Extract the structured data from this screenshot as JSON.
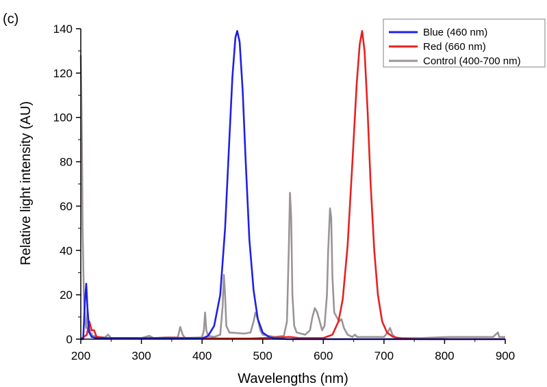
{
  "panel_label": "(c)",
  "chart_data": {
    "type": "line",
    "title": "",
    "xlabel": "Wavelengths (nm)",
    "ylabel": "Relative light intensity (AU)",
    "xlim": [
      200,
      900
    ],
    "ylim": [
      0,
      140
    ],
    "x_ticks": [
      200,
      300,
      400,
      500,
      600,
      700,
      800,
      900
    ],
    "y_ticks": [
      0,
      20,
      40,
      60,
      80,
      100,
      120,
      140
    ],
    "grid": false,
    "legend_position": "top-right",
    "series": [
      {
        "name": "Blue (460 nm)",
        "color": "#1f1fe6",
        "points": [
          [
            200,
            0
          ],
          [
            204,
            0
          ],
          [
            207,
            18
          ],
          [
            209,
            25
          ],
          [
            211,
            14
          ],
          [
            214,
            3
          ],
          [
            218,
            1
          ],
          [
            225,
            0.5
          ],
          [
            400,
            0.3
          ],
          [
            410,
            1.5
          ],
          [
            420,
            6
          ],
          [
            430,
            20
          ],
          [
            438,
            50
          ],
          [
            445,
            90
          ],
          [
            450,
            118
          ],
          [
            455,
            136
          ],
          [
            458,
            139
          ],
          [
            462,
            134
          ],
          [
            467,
            112
          ],
          [
            472,
            80
          ],
          [
            478,
            45
          ],
          [
            485,
            22
          ],
          [
            492,
            9
          ],
          [
            500,
            3
          ],
          [
            510,
            1
          ],
          [
            520,
            0.3
          ],
          [
            540,
            0
          ],
          [
            900,
            0
          ]
        ]
      },
      {
        "name": "Red (660 nm)",
        "color": "#e81f1f",
        "points": [
          [
            200,
            0
          ],
          [
            210,
            2
          ],
          [
            214,
            8
          ],
          [
            218,
            4
          ],
          [
            222,
            4
          ],
          [
            226,
            1
          ],
          [
            240,
            0.5
          ],
          [
            300,
            0.4
          ],
          [
            350,
            0.6
          ],
          [
            400,
            0.5
          ],
          [
            430,
            0.3
          ],
          [
            480,
            0.3
          ],
          [
            500,
            0.5
          ],
          [
            545,
            1
          ],
          [
            560,
            0.5
          ],
          [
            600,
            0.5
          ],
          [
            615,
            2
          ],
          [
            625,
            8
          ],
          [
            632,
            18
          ],
          [
            640,
            42
          ],
          [
            648,
            80
          ],
          [
            655,
            115
          ],
          [
            660,
            133
          ],
          [
            664,
            139
          ],
          [
            668,
            130
          ],
          [
            673,
            103
          ],
          [
            678,
            70
          ],
          [
            684,
            40
          ],
          [
            690,
            20
          ],
          [
            697,
            8
          ],
          [
            705,
            3
          ],
          [
            715,
            1
          ],
          [
            730,
            0.3
          ],
          [
            760,
            0
          ],
          [
            900,
            0
          ]
        ]
      },
      {
        "name": "Control (400-700 nm)",
        "color": "#9a9397",
        "points": [
          [
            200,
            128
          ],
          [
            201,
            110
          ],
          [
            202,
            86
          ],
          [
            203,
            50
          ],
          [
            205,
            20
          ],
          [
            207,
            8
          ],
          [
            209,
            5
          ],
          [
            211,
            13
          ],
          [
            213,
            5
          ],
          [
            216,
            3
          ],
          [
            220,
            1.5
          ],
          [
            230,
            1
          ],
          [
            240,
            0.8
          ],
          [
            245,
            2
          ],
          [
            250,
            0.5
          ],
          [
            300,
            0.5
          ],
          [
            313,
            1.5
          ],
          [
            320,
            0.5
          ],
          [
            340,
            0.8
          ],
          [
            360,
            0.8
          ],
          [
            364,
            5.5
          ],
          [
            368,
            2
          ],
          [
            372,
            0.5
          ],
          [
            400,
            0.8
          ],
          [
            403,
            4
          ],
          [
            405,
            12
          ],
          [
            407,
            4
          ],
          [
            410,
            1.5
          ],
          [
            420,
            1
          ],
          [
            430,
            2
          ],
          [
            434,
            15
          ],
          [
            436,
            29
          ],
          [
            438,
            20
          ],
          [
            440,
            6
          ],
          [
            445,
            3
          ],
          [
            470,
            2.5
          ],
          [
            480,
            3
          ],
          [
            485,
            8
          ],
          [
            488,
            12
          ],
          [
            492,
            9
          ],
          [
            496,
            4
          ],
          [
            500,
            2
          ],
          [
            520,
            1
          ],
          [
            535,
            1.5
          ],
          [
            540,
            8
          ],
          [
            543,
            40
          ],
          [
            545,
            66
          ],
          [
            547,
            55
          ],
          [
            549,
            20
          ],
          [
            552,
            6
          ],
          [
            556,
            3
          ],
          [
            570,
            2
          ],
          [
            578,
            4
          ],
          [
            582,
            10
          ],
          [
            586,
            14
          ],
          [
            590,
            12
          ],
          [
            594,
            8
          ],
          [
            598,
            4
          ],
          [
            602,
            6
          ],
          [
            606,
            20
          ],
          [
            608,
            40
          ],
          [
            611,
            59
          ],
          [
            613,
            55
          ],
          [
            615,
            28
          ],
          [
            618,
            12
          ],
          [
            622,
            10
          ],
          [
            626,
            8
          ],
          [
            630,
            9
          ],
          [
            634,
            5
          ],
          [
            640,
            2
          ],
          [
            648,
            1
          ],
          [
            652,
            2
          ],
          [
            656,
            1
          ],
          [
            680,
            1
          ],
          [
            700,
            1
          ],
          [
            706,
            3
          ],
          [
            710,
            5
          ],
          [
            714,
            2
          ],
          [
            720,
            0.5
          ],
          [
            760,
            0.5
          ],
          [
            810,
            1
          ],
          [
            850,
            1
          ],
          [
            880,
            1
          ],
          [
            888,
            3
          ],
          [
            890,
            1
          ],
          [
            900,
            1
          ]
        ]
      }
    ]
  }
}
